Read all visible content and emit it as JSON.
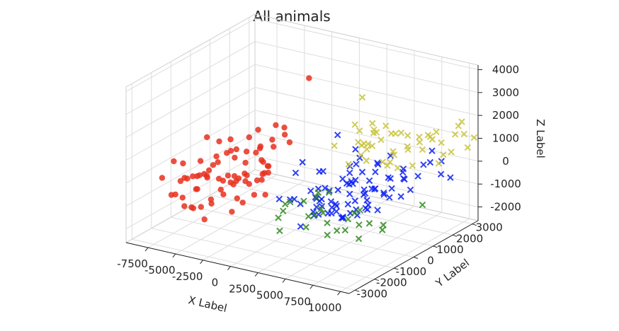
{
  "chart_data": {
    "type": "scatter",
    "title": "All animals",
    "xlabel": "X Label",
    "ylabel": "Y Label",
    "zlabel": "Z Label",
    "xlim": [
      -9500,
      10800
    ],
    "ylim": [
      -3300,
      3300
    ],
    "zlim": [
      -2600,
      4200
    ],
    "x_ticks": [
      "-7500",
      "-5000",
      "-2500",
      "0",
      "2500",
      "5000",
      "7500",
      "10000"
    ],
    "y_ticks": [
      "-3000",
      "-2000",
      "-1000",
      "0",
      "1000",
      "2000",
      "3000"
    ],
    "z_ticks": [
      "-2000",
      "-1000",
      "0",
      "1000",
      "2000",
      "3000",
      "4000"
    ],
    "grid": true,
    "series": [
      {
        "color": "#e8301e",
        "marker": "circle",
        "points": [
          [
            -8440,
            -2050,
            -260
          ],
          [
            -6990,
            -1720,
            -260
          ],
          [
            -5740,
            -1400,
            -2090
          ],
          [
            -5280,
            -1300,
            -1400
          ],
          [
            -6460,
            -1570,
            -1600
          ],
          [
            -7390,
            -1960,
            -910
          ],
          [
            -6920,
            -1620,
            -330
          ],
          [
            -7070,
            -1880,
            -330
          ],
          [
            -6930,
            -1760,
            -1470
          ],
          [
            -6320,
            -1740,
            -1460
          ],
          [
            -7520,
            -1970,
            530
          ],
          [
            -6090,
            -1570,
            -720
          ],
          [
            -5820,
            -1560,
            530
          ],
          [
            -7390,
            -1570,
            260
          ],
          [
            -7220,
            -1690,
            -1160
          ],
          [
            -7600,
            -2050,
            -910
          ],
          [
            -5950,
            -1660,
            -100
          ],
          [
            -5330,
            -1300,
            -1220
          ],
          [
            -4970,
            -1080,
            1250
          ],
          [
            -6140,
            -1430,
            -190
          ],
          [
            -4790,
            -1100,
            -830
          ],
          [
            -6270,
            -1700,
            -120
          ],
          [
            -6080,
            -1640,
            -690
          ],
          [
            -5580,
            -1350,
            -270
          ],
          [
            -4920,
            -1250,
            680
          ],
          [
            -5630,
            -1640,
            -1420
          ],
          [
            -5330,
            -1190,
            230
          ],
          [
            -5160,
            -1040,
            300
          ],
          [
            -3890,
            -1090,
            960
          ],
          [
            -4200,
            -1300,
            -880
          ],
          [
            -5770,
            -1400,
            -110
          ],
          [
            -5330,
            -1400,
            100
          ],
          [
            -3570,
            -1140,
            -450
          ],
          [
            -3710,
            -1140,
            -1660
          ],
          [
            -4100,
            -1120,
            -130
          ],
          [
            -4590,
            -1310,
            -230
          ],
          [
            -3200,
            -730,
            340
          ],
          [
            -5430,
            -1450,
            1560
          ],
          [
            -4140,
            -1160,
            870
          ],
          [
            -3710,
            -1010,
            -160
          ],
          [
            -5580,
            -1380,
            -170
          ],
          [
            -4010,
            -750,
            -540
          ],
          [
            -3990,
            -1050,
            1430
          ],
          [
            -3670,
            -820,
            -350
          ],
          [
            -2120,
            -690,
            1880
          ],
          [
            -3360,
            -1070,
            -1070
          ],
          [
            -3110,
            -710,
            -210
          ],
          [
            -3760,
            -880,
            940
          ],
          [
            -3160,
            -700,
            820
          ],
          [
            -4460,
            -1170,
            -370
          ],
          [
            -2050,
            -560,
            500
          ],
          [
            -3150,
            -570,
            -660
          ],
          [
            -2480,
            -690,
            -1000
          ],
          [
            -4220,
            -920,
            -540
          ],
          [
            -2760,
            -790,
            1530
          ],
          [
            -3700,
            -1000,
            640
          ],
          [
            -2290,
            -370,
            -230
          ],
          [
            -3030,
            -830,
            -400
          ],
          [
            -3380,
            -770,
            -1400
          ],
          [
            -1840,
            -590,
            460
          ],
          [
            -3440,
            -640,
            -200
          ],
          [
            -2320,
            -690,
            860
          ],
          [
            -2370,
            -430,
            1000
          ],
          [
            -2190,
            -330,
            -190
          ],
          [
            -2320,
            -630,
            -380
          ],
          [
            -1870,
            -310,
            -150
          ],
          [
            -2190,
            -560,
            1000
          ],
          [
            -1680,
            -450,
            230
          ],
          [
            -1770,
            -520,
            -1000
          ],
          [
            -340,
            -350,
            2010
          ],
          [
            -1380,
            -320,
            1040
          ],
          [
            -2060,
            -540,
            -370
          ],
          [
            -1510,
            -310,
            1330
          ],
          [
            -780,
            -80,
            1520
          ],
          [
            -1870,
            -300,
            130
          ],
          [
            -1330,
            -230,
            1950
          ],
          [
            -220,
            -150,
            1280
          ],
          [
            1210,
            40,
            4150
          ]
        ]
      },
      {
        "color": "#0a1ff5",
        "marker": "x",
        "points": [
          [
            -680,
            -420,
            -1120
          ],
          [
            1800,
            -720,
            -1900
          ],
          [
            -380,
            180,
            -1380
          ],
          [
            5820,
            -820,
            -1040
          ],
          [
            3000,
            -480,
            -1360
          ],
          [
            -560,
            70,
            -1370
          ],
          [
            4390,
            -600,
            -1100
          ],
          [
            1590,
            50,
            -1660
          ],
          [
            1990,
            -150,
            -1680
          ],
          [
            3110,
            380,
            -1390
          ],
          [
            2710,
            -420,
            -1100
          ],
          [
            5470,
            -690,
            -1140
          ],
          [
            6100,
            -240,
            -1170
          ],
          [
            1770,
            50,
            -1000
          ],
          [
            3220,
            -120,
            -1460
          ],
          [
            -1140,
            1030,
            -260
          ],
          [
            980,
            -270,
            -1220
          ],
          [
            1190,
            140,
            -830
          ],
          [
            1770,
            110,
            -1090
          ],
          [
            4580,
            -120,
            -1470
          ],
          [
            2020,
            230,
            -1140
          ],
          [
            5180,
            -790,
            -840
          ],
          [
            -520,
            330,
            -320
          ],
          [
            2850,
            1200,
            -370
          ],
          [
            5250,
            -120,
            -1230
          ],
          [
            2470,
            -10,
            -1290
          ],
          [
            4470,
            200,
            -1080
          ],
          [
            3050,
            490,
            -750
          ],
          [
            3480,
            120,
            -1140
          ],
          [
            6700,
            -250,
            -200
          ],
          [
            6030,
            -260,
            -920
          ],
          [
            3910,
            690,
            -380
          ],
          [
            2690,
            -250,
            -920
          ],
          [
            4220,
            -480,
            -920
          ],
          [
            1130,
            1550,
            930
          ],
          [
            2300,
            470,
            -860
          ],
          [
            4380,
            340,
            -710
          ],
          [
            7150,
            -270,
            -590
          ],
          [
            1260,
            490,
            -900
          ],
          [
            6840,
            -140,
            -890
          ],
          [
            3800,
            -290,
            -800
          ],
          [
            2870,
            1520,
            -140
          ],
          [
            7530,
            -620,
            -520
          ],
          [
            500,
            1160,
            -540
          ],
          [
            3380,
            880,
            -660
          ],
          [
            4990,
            270,
            -910
          ],
          [
            7380,
            80,
            -960
          ],
          [
            730,
            840,
            -370
          ],
          [
            2190,
            310,
            -680
          ],
          [
            3570,
            1090,
            -550
          ],
          [
            5910,
            750,
            -530
          ],
          [
            5590,
            450,
            -600
          ],
          [
            2900,
            810,
            -440
          ],
          [
            6110,
            250,
            -750
          ],
          [
            6110,
            500,
            -370
          ],
          [
            4330,
            530,
            -360
          ],
          [
            2860,
            1210,
            -80
          ],
          [
            6670,
            360,
            -230
          ],
          [
            3810,
            510,
            -390
          ],
          [
            5370,
            520,
            -500
          ],
          [
            5550,
            690,
            -170
          ],
          [
            3040,
            1390,
            590
          ],
          [
            4070,
            1160,
            -180
          ],
          [
            7160,
            530,
            -520
          ],
          [
            6900,
            660,
            -540
          ],
          [
            4870,
            1480,
            150
          ],
          [
            5610,
            960,
            90
          ],
          [
            2820,
            1730,
            30
          ],
          [
            7410,
            670,
            -690
          ],
          [
            8940,
            400,
            -350
          ],
          [
            5340,
            1250,
            250
          ],
          [
            8210,
            940,
            100
          ],
          [
            9780,
            410,
            30
          ],
          [
            7390,
            800,
            -360
          ],
          [
            6560,
            1200,
            -210
          ],
          [
            5550,
            1770,
            400
          ],
          [
            6650,
            1040,
            -80
          ],
          [
            8070,
            1760,
            -210
          ],
          [
            9330,
            1770,
            1030
          ],
          [
            7680,
            1200,
            190
          ],
          [
            7870,
            1180,
            -90
          ],
          [
            8660,
            1710,
            380
          ],
          [
            10730,
            1440,
            320
          ],
          [
            10520,
            2040,
            -140
          ],
          [
            6580,
            1850,
            -100
          ],
          [
            10900,
            1370,
            940
          ],
          [
            9480,
            1590,
            630
          ]
        ]
      },
      {
        "color": "#2f8a1f",
        "marker": "x",
        "points": [
          [
            1100,
            -1400,
            -1840
          ],
          [
            4570,
            -910,
            -1880
          ],
          [
            570,
            -1170,
            -1440
          ],
          [
            -240,
            -470,
            -1570
          ],
          [
            2840,
            -1030,
            -1670
          ],
          [
            6200,
            -1340,
            -1300
          ],
          [
            -140,
            -420,
            -1280
          ],
          [
            2370,
            -320,
            -1520
          ],
          [
            4220,
            -720,
            -1480
          ],
          [
            2280,
            -590,
            -1470
          ],
          [
            6400,
            -1030,
            -1410
          ],
          [
            7980,
            -1220,
            -1520
          ],
          [
            690,
            -630,
            -1000
          ],
          [
            3160,
            -340,
            -1340
          ],
          [
            5370,
            -300,
            -1390
          ],
          [
            3370,
            -560,
            -1040
          ],
          [
            7680,
            -510,
            -1220
          ],
          [
            1610,
            190,
            -1090
          ],
          [
            1800,
            -560,
            -870
          ],
          [
            7150,
            -740,
            -1230
          ],
          [
            1950,
            100,
            -800
          ],
          [
            5870,
            -260,
            -1090
          ],
          [
            9570,
            -910,
            -1110
          ],
          [
            2550,
            310,
            -830
          ],
          [
            5880,
            20,
            -1100
          ],
          [
            8990,
            -530,
            -1140
          ],
          [
            11320,
            160,
            -340
          ]
        ]
      },
      {
        "color": "#c8c33b",
        "marker": "x",
        "points": [
          [
            4990,
            1240,
            1730
          ],
          [
            3170,
            1290,
            1730
          ],
          [
            3690,
            1340,
            860
          ],
          [
            4700,
            1320,
            1940
          ],
          [
            2020,
            880,
            880
          ],
          [
            4330,
            1520,
            820
          ],
          [
            3270,
            1610,
            2780
          ],
          [
            5300,
            2040,
            430
          ],
          [
            4190,
            1300,
            260
          ],
          [
            4430,
            1190,
            840
          ],
          [
            3450,
            810,
            260
          ],
          [
            5600,
            1340,
            340
          ],
          [
            3540,
            1390,
            390
          ],
          [
            4400,
            1270,
            1030
          ],
          [
            6940,
            1870,
            1390
          ],
          [
            3640,
            1260,
            1530
          ],
          [
            5170,
            1960,
            -10
          ],
          [
            3740,
            1430,
            900
          ],
          [
            7000,
            2080,
            -20
          ],
          [
            3450,
            1300,
            990
          ],
          [
            5760,
            1490,
            130
          ],
          [
            8710,
            1630,
            1080
          ],
          [
            5890,
            1620,
            1480
          ],
          [
            4600,
            1440,
            1450
          ],
          [
            6630,
            1350,
            760
          ],
          [
            4580,
            1600,
            1400
          ],
          [
            6680,
            2000,
            820
          ],
          [
            8710,
            2130,
            1290
          ],
          [
            4780,
            1720,
            1040
          ],
          [
            6410,
            1830,
            1470
          ],
          [
            7890,
            1930,
            1400
          ],
          [
            5520,
            1550,
            1810
          ],
          [
            6590,
            1440,
            1640
          ],
          [
            8480,
            2590,
            -10
          ],
          [
            7670,
            2070,
            1080
          ],
          [
            6220,
            2290,
            490
          ],
          [
            8130,
            2240,
            1360
          ],
          [
            5740,
            2030,
            -240
          ],
          [
            9760,
            3050,
            1730
          ],
          [
            8670,
            2360,
            1500
          ],
          [
            9270,
            2280,
            1130
          ],
          [
            10130,
            2670,
            1770
          ],
          [
            7480,
            2720,
            990
          ],
          [
            8220,
            2970,
            160
          ],
          [
            10370,
            3010,
            690
          ],
          [
            9880,
            3100,
            1180
          ],
          [
            9680,
            2760,
            1310
          ],
          [
            10330,
            3360,
            950
          ],
          [
            8270,
            3350,
            100
          ]
        ]
      }
    ]
  }
}
